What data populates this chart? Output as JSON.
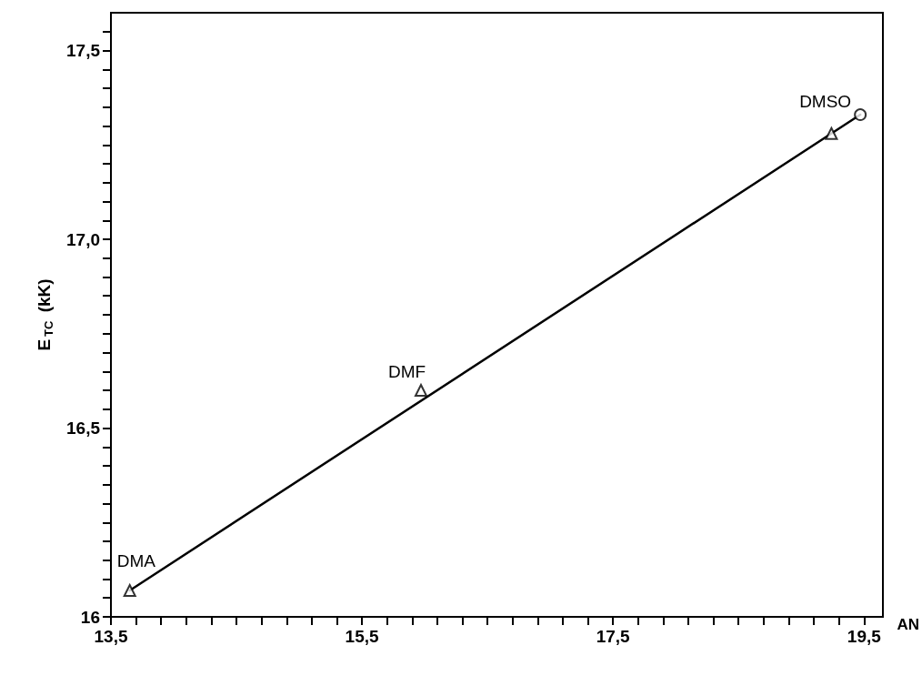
{
  "chart_data": {
    "type": "scatter",
    "xlabel": "AN",
    "ylabel": "E$_{TC}$ (kK)",
    "xlim": [
      13.5,
      19.65
    ],
    "ylim": [
      16,
      17.6
    ],
    "xticks": [
      {
        "value": 13.5,
        "label": "13,5"
      },
      {
        "value": 13.7,
        "label": null
      },
      {
        "value": 13.9,
        "label": null
      },
      {
        "value": 14.1,
        "label": null
      },
      {
        "value": 14.3,
        "label": null
      },
      {
        "value": 14.5,
        "label": null
      },
      {
        "value": 14.7,
        "label": null
      },
      {
        "value": 14.9,
        "label": null
      },
      {
        "value": 15.1,
        "label": null
      },
      {
        "value": 15.3,
        "label": null
      },
      {
        "value": 15.5,
        "label": "15,5"
      },
      {
        "value": 15.7,
        "label": null
      },
      {
        "value": 15.9,
        "label": null
      },
      {
        "value": 16.1,
        "label": null
      },
      {
        "value": 16.3,
        "label": null
      },
      {
        "value": 16.5,
        "label": null
      },
      {
        "value": 16.7,
        "label": null
      },
      {
        "value": 16.9,
        "label": null
      },
      {
        "value": 17.1,
        "label": null
      },
      {
        "value": 17.3,
        "label": null
      },
      {
        "value": 17.5,
        "label": "17,5"
      },
      {
        "value": 17.7,
        "label": null
      },
      {
        "value": 17.9,
        "label": null
      },
      {
        "value": 18.1,
        "label": null
      },
      {
        "value": 18.3,
        "label": null
      },
      {
        "value": 18.5,
        "label": null
      },
      {
        "value": 18.7,
        "label": null
      },
      {
        "value": 18.9,
        "label": null
      },
      {
        "value": 19.1,
        "label": null
      },
      {
        "value": 19.3,
        "label": null
      },
      {
        "value": 19.5,
        "label": "19,5"
      }
    ],
    "yticks": [
      16,
      {
        "value": 16.05,
        "label": null
      },
      {
        "value": 16.1,
        "label": null
      },
      {
        "value": 16.15,
        "label": null
      },
      {
        "value": 16.2,
        "label": null
      },
      {
        "value": 16.25,
        "label": null
      },
      {
        "value": 16.3,
        "label": null
      },
      {
        "value": 16.35,
        "label": null
      },
      {
        "value": 16.4,
        "label": null
      },
      {
        "value": 16.45,
        "label": null
      },
      {
        "value": 16.5,
        "label": "16,5"
      },
      {
        "value": 16.55,
        "label": null
      },
      {
        "value": 16.6,
        "label": null
      },
      {
        "value": 16.65,
        "label": null
      },
      {
        "value": 16.7,
        "label": null
      },
      {
        "value": 16.75,
        "label": null
      },
      {
        "value": 16.8,
        "label": null
      },
      {
        "value": 16.85,
        "label": null
      },
      {
        "value": 16.9,
        "label": null
      },
      {
        "value": 16.95,
        "label": null
      },
      {
        "value": 17,
        "label": "17,0"
      },
      {
        "value": 17.05,
        "label": null
      },
      {
        "value": 17.1,
        "label": null
      },
      {
        "value": 17.15,
        "label": null
      },
      {
        "value": 17.2,
        "label": null
      },
      {
        "value": 17.25,
        "label": null
      },
      {
        "value": 17.3,
        "label": null
      },
      {
        "value": 17.35,
        "label": null
      },
      {
        "value": 17.4,
        "label": null
      },
      {
        "value": 17.45,
        "label": null
      },
      {
        "value": 17.5,
        "label": "17,5"
      },
      {
        "value": 17.55,
        "label": null
      }
    ],
    "grid": false,
    "series": [
      {
        "marker": "triangle",
        "color": "#000000",
        "x": [
          13.65,
          15.97,
          19.24
        ],
        "values": [
          16.07,
          16.6,
          17.28
        ]
      },
      {
        "marker": "circle",
        "color": "#000000",
        "x": [
          19.47
        ],
        "values": [
          17.33
        ]
      },
      {
        "type": "line",
        "marker": "none",
        "line_style": "solid",
        "color": "#000000",
        "x": [
          13.65,
          19.47
        ],
        "values": [
          16.07,
          17.33
        ]
      }
    ],
    "annotations": [
      {
        "text": "DMA",
        "x": 13.65,
        "y": 16.07
      },
      {
        "text": "DMF",
        "x": 15.97,
        "y": 16.6
      },
      {
        "text": "DMSO",
        "x": 19.47,
        "y": 17.33
      }
    ]
  }
}
